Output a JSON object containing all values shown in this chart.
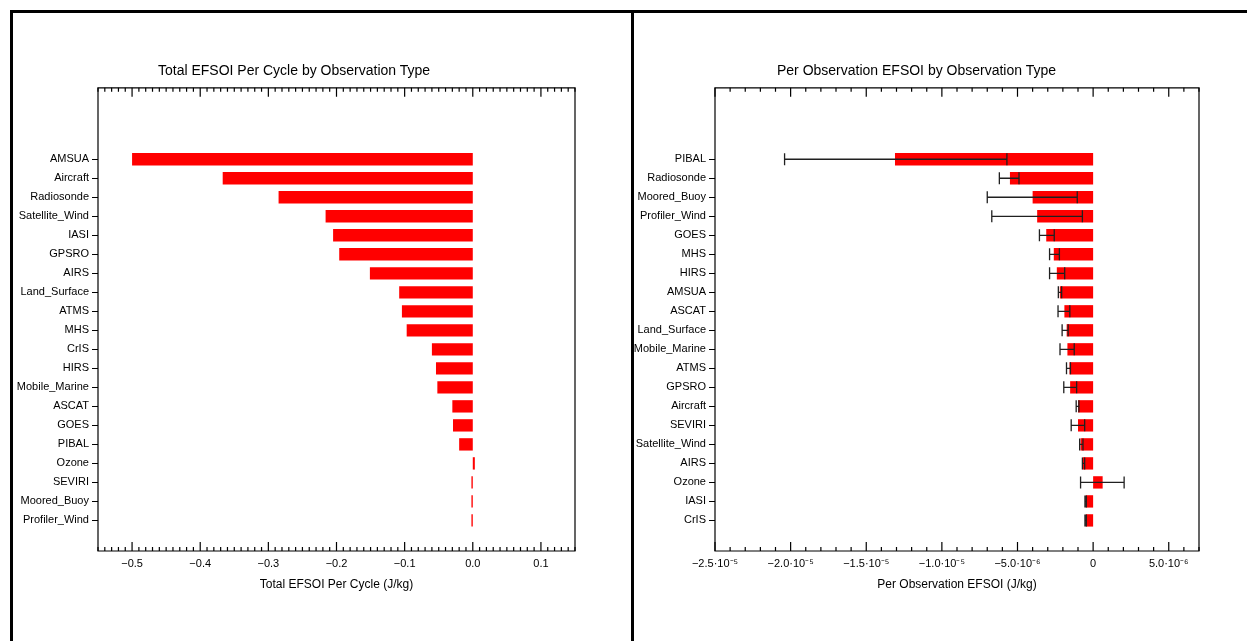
{
  "chart_data": [
    {
      "type": "bar",
      "orientation": "horizontal",
      "title": "Total EFSOI Per Cycle by Observation Type",
      "xlabel": "Total EFSOI Per Cycle (J/kg)",
      "color": "#ff0000",
      "categories": [
        "AMSUA",
        "Aircraft",
        "Radiosonde",
        "Satellite_Wind",
        "IASI",
        "GPSRO",
        "AIRS",
        "Land_Surface",
        "ATMS",
        "MHS",
        "CrIS",
        "HIRS",
        "Mobile_Marine",
        "ASCAT",
        "GOES",
        "PIBAL",
        "Ozone",
        "SEVIRI",
        "Moored_Buoy",
        "Profiler_Wind"
      ],
      "values": [
        -0.5,
        -0.367,
        -0.285,
        -0.216,
        -0.205,
        -0.196,
        -0.151,
        -0.108,
        -0.104,
        -0.097,
        -0.06,
        -0.054,
        -0.052,
        -0.03,
        -0.029,
        -0.02,
        0.003,
        -0.002,
        -0.002,
        -0.002
      ],
      "xlim": [
        -0.55,
        0.15
      ],
      "xticks": [
        {
          "value": -0.55,
          "label": null
        },
        {
          "value": -0.54,
          "label": null
        },
        {
          "value": -0.53,
          "label": null
        },
        {
          "value": -0.52,
          "label": null
        },
        {
          "value": -0.51,
          "label": null
        },
        {
          "value": -0.5,
          "label": "−0.5"
        },
        {
          "value": -0.49,
          "label": null
        },
        {
          "value": -0.48,
          "label": null
        },
        {
          "value": -0.47,
          "label": null
        },
        {
          "value": -0.46,
          "label": null
        },
        {
          "value": -0.45,
          "label": null
        },
        {
          "value": -0.44,
          "label": null
        },
        {
          "value": -0.43,
          "label": null
        },
        {
          "value": -0.42,
          "label": null
        },
        {
          "value": -0.41,
          "label": null
        },
        {
          "value": -0.4,
          "label": "−0.4"
        },
        {
          "value": -0.39,
          "label": null
        },
        {
          "value": -0.38,
          "label": null
        },
        {
          "value": -0.37,
          "label": null
        },
        {
          "value": -0.36,
          "label": null
        },
        {
          "value": -0.35,
          "label": null
        },
        {
          "value": -0.34,
          "label": null
        },
        {
          "value": -0.33,
          "label": null
        },
        {
          "value": -0.32,
          "label": null
        },
        {
          "value": -0.31,
          "label": null
        },
        {
          "value": -0.3,
          "label": "−0.3"
        },
        {
          "value": -0.29,
          "label": null
        },
        {
          "value": -0.28,
          "label": null
        },
        {
          "value": -0.27,
          "label": null
        },
        {
          "value": -0.26,
          "label": null
        },
        {
          "value": -0.25,
          "label": null
        },
        {
          "value": -0.24,
          "label": null
        },
        {
          "value": -0.23,
          "label": null
        },
        {
          "value": -0.22,
          "label": null
        },
        {
          "value": -0.21,
          "label": null
        },
        {
          "value": -0.2,
          "label": "−0.2"
        },
        {
          "value": -0.19,
          "label": null
        },
        {
          "value": -0.18,
          "label": null
        },
        {
          "value": -0.17,
          "label": null
        },
        {
          "value": -0.16,
          "label": null
        },
        {
          "value": -0.15,
          "label": null
        },
        {
          "value": -0.14,
          "label": null
        },
        {
          "value": -0.13,
          "label": null
        },
        {
          "value": -0.12,
          "label": null
        },
        {
          "value": -0.11,
          "label": null
        },
        {
          "value": -0.1,
          "label": "−0.1"
        },
        {
          "value": -0.09,
          "label": null
        },
        {
          "value": -0.08,
          "label": null
        },
        {
          "value": -0.07,
          "label": null
        },
        {
          "value": -0.06,
          "label": null
        },
        {
          "value": -0.05,
          "label": null
        },
        {
          "value": -0.04,
          "label": null
        },
        {
          "value": -0.03,
          "label": null
        },
        {
          "value": -0.02,
          "label": null
        },
        {
          "value": -0.01,
          "label": null
        },
        {
          "value": 0,
          "label": "0.0"
        },
        {
          "value": 0.01,
          "label": null
        },
        {
          "value": 0.02,
          "label": null
        },
        {
          "value": 0.03,
          "label": null
        },
        {
          "value": 0.04,
          "label": null
        },
        {
          "value": 0.05,
          "label": null
        },
        {
          "value": 0.06,
          "label": null
        },
        {
          "value": 0.07,
          "label": null
        },
        {
          "value": 0.08,
          "label": null
        },
        {
          "value": 0.09,
          "label": null
        },
        {
          "value": 0.1,
          "label": "0.1"
        },
        {
          "value": 0.11,
          "label": null
        },
        {
          "value": 0.12,
          "label": null
        },
        {
          "value": 0.13,
          "label": null
        },
        {
          "value": 0.14,
          "label": null
        },
        {
          "value": 0.15,
          "label": null
        }
      ]
    },
    {
      "type": "bar",
      "orientation": "horizontal",
      "title": "Per Observation EFSOI by Observation Type",
      "xlabel": "Per Observation EFSOI (J/kg)",
      "color": "#ff0000",
      "categories": [
        "PIBAL",
        "Radiosonde",
        "Moored_Buoy",
        "Profiler_Wind",
        "GOES",
        "MHS",
        "HIRS",
        "AMSUA",
        "ASCAT",
        "Land_Surface",
        "Mobile_Marine",
        "ATMS",
        "GPSRO",
        "Aircraft",
        "SEVIRI",
        "Satellite_Wind",
        "AIRS",
        "Ozone",
        "IASI",
        "CrIS"
      ],
      "values": [
        -1.31e-05,
        -5.5e-06,
        -4e-06,
        -3.7e-06,
        -3.1e-06,
        -2.6e-06,
        -2.4e-06,
        -2.2e-06,
        -1.9e-06,
        -1.75e-06,
        -1.7e-06,
        -1.56e-06,
        -1.52e-06,
        -1e-06,
        -1e-06,
        -8.3e-07,
        -6.9e-07,
        6.3e-07,
        -4.9e-07,
        -4.9e-07
      ],
      "errors": [
        [
          -2.04e-05,
          -5.7e-06
        ],
        [
          -6.2e-06,
          -4.9e-06
        ],
        [
          -7e-06,
          -1.05e-06
        ],
        [
          -6.7e-06,
          -7.1e-07
        ],
        [
          -3.55e-06,
          -2.57e-06
        ],
        [
          -2.88e-06,
          -2.23e-06
        ],
        [
          -2.88e-06,
          -1.88e-06
        ],
        [
          -2.3e-06,
          -2.08e-06
        ],
        [
          -2.32e-06,
          -1.54e-06
        ],
        [
          -2.05e-06,
          -1.65e-06
        ],
        [
          -2.19e-06,
          -1.25e-06
        ],
        [
          -1.76e-06,
          -1.5e-06
        ],
        [
          -1.94e-06,
          -1.09e-06
        ],
        [
          -1.12e-06,
          -9.4e-07
        ],
        [
          -1.45e-06,
          -5.6e-07
        ],
        [
          -8.9e-07,
          -6.7e-07
        ],
        [
          -7.1e-07,
          -5.6e-07
        ],
        [
          -8.3e-07,
          2.05e-06
        ],
        [
          -5.4e-07,
          -4.5e-07
        ],
        [
          -5.4e-07,
          -4.5e-07
        ]
      ],
      "xlim": [
        -2.5e-05,
        7e-06
      ],
      "xticks": [
        {
          "value": -2.5e-05,
          "label": "−2.5·10⁻⁵"
        },
        {
          "value": -2.4e-05,
          "label": null
        },
        {
          "value": -2.3e-05,
          "label": null
        },
        {
          "value": -2.2e-05,
          "label": null
        },
        {
          "value": -2.1e-05,
          "label": null
        },
        {
          "value": -2e-05,
          "label": "−2.0·10⁻⁵"
        },
        {
          "value": -1.9e-05,
          "label": null
        },
        {
          "value": -1.8e-05,
          "label": null
        },
        {
          "value": -1.7e-05,
          "label": null
        },
        {
          "value": -1.6e-05,
          "label": null
        },
        {
          "value": -1.5e-05,
          "label": "−1.5·10⁻⁵"
        },
        {
          "value": -1.4e-05,
          "label": null
        },
        {
          "value": -1.3e-05,
          "label": null
        },
        {
          "value": -1.2e-05,
          "label": null
        },
        {
          "value": -1.1e-05,
          "label": null
        },
        {
          "value": -1e-05,
          "label": "−1.0·10⁻⁵"
        },
        {
          "value": -9e-06,
          "label": null
        },
        {
          "value": -8e-06,
          "label": null
        },
        {
          "value": -7e-06,
          "label": null
        },
        {
          "value": -6e-06,
          "label": null
        },
        {
          "value": -5e-06,
          "label": "−5.0·10⁻⁶"
        },
        {
          "value": -4e-06,
          "label": null
        },
        {
          "value": -3e-06,
          "label": null
        },
        {
          "value": -2e-06,
          "label": null
        },
        {
          "value": -1e-06,
          "label": null
        },
        {
          "value": 0,
          "label": "0"
        },
        {
          "value": 1e-06,
          "label": null
        },
        {
          "value": 2e-06,
          "label": null
        },
        {
          "value": 3e-06,
          "label": null
        },
        {
          "value": 4e-06,
          "label": null
        },
        {
          "value": 5e-06,
          "label": "5.0·10⁻⁶"
        },
        {
          "value": 6e-06,
          "label": null
        },
        {
          "value": 7e-06,
          "label": null
        }
      ]
    }
  ]
}
